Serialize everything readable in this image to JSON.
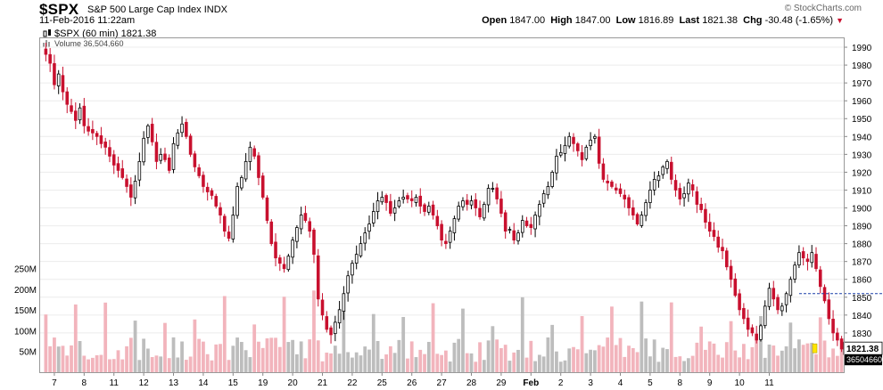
{
  "header": {
    "symbol": "$SPX",
    "name": "S&P 500 Large Cap Index",
    "exchange": "INDX",
    "datetime": "11-Feb-2016 11:22am",
    "copyright": "© StockCharts.com",
    "open_label": "Open",
    "open": "1847.00",
    "high_label": "High",
    "high": "1847.00",
    "low_label": "Low",
    "low": "1816.89",
    "last_label": "Last",
    "last": "1821.38",
    "chg_label": "Chg",
    "chg": "-30.48 (-1.65%)",
    "down_icon": "triangle-down-icon"
  },
  "legend": {
    "price_line": "$SPX (60 min) 1821.38",
    "volume_line": "Volume 36,504,660"
  },
  "markers": {
    "last_price": "1821.38",
    "last_volume": "36504660"
  },
  "colors": {
    "up": "#000000",
    "down": "#c8102e",
    "vol_down": "#f2b4bc",
    "vol_up": "#bdbdbd",
    "ref_line": "#1a3fa8",
    "last_marker": "#ffe600"
  },
  "chart_data": {
    "type": "candlestick",
    "title": "$SPX (60 min)",
    "x_tick_labels": [
      "7",
      "8",
      "11",
      "12",
      "13",
      "14",
      "15",
      "19",
      "20",
      "21",
      "22",
      "25",
      "26",
      "27",
      "28",
      "29",
      "Feb",
      "2",
      "3",
      "4",
      "5",
      "8",
      "9",
      "10",
      "11"
    ],
    "y_tick_labels": [
      "1990",
      "1980",
      "1970",
      "1960",
      "1950",
      "1940",
      "1930",
      "1920",
      "1910",
      "1900",
      "1890",
      "1880",
      "1870",
      "1860",
      "1850",
      "1840",
      "1830"
    ],
    "ylim": [
      1812,
      1995
    ],
    "reference_level": 1852,
    "volume_axis_labels": [
      "250M",
      "200M",
      "150M",
      "100M",
      "50M"
    ],
    "volume_ylim": [
      0,
      260
    ],
    "bars_per_day": 7,
    "closes": [
      1986,
      1981,
      1969,
      1975,
      1965,
      1958,
      1954,
      1949,
      1956,
      1946,
      1943,
      1942,
      1940,
      1936,
      1934,
      1929,
      1924,
      1921,
      1917,
      1912,
      1906,
      1915,
      1926,
      1939,
      1946,
      1937,
      1926,
      1930,
      1927,
      1921,
      1936,
      1942,
      1947,
      1940,
      1930,
      1923,
      1918,
      1912,
      1909,
      1907,
      1901,
      1896,
      1887,
      1883,
      1896,
      1912,
      1917,
      1926,
      1934,
      1929,
      1917,
      1906,
      1893,
      1880,
      1872,
      1869,
      1866,
      1873,
      1882,
      1889,
      1896,
      1893,
      1887,
      1874,
      1849,
      1840,
      1832,
      1829,
      1836,
      1843,
      1852,
      1862,
      1869,
      1874,
      1880,
      1886,
      1891,
      1898,
      1904,
      1906,
      1903,
      1897,
      1900,
      1904,
      1906,
      1905,
      1904,
      1906,
      1901,
      1898,
      1901,
      1896,
      1890,
      1882,
      1880,
      1887,
      1894,
      1901,
      1904,
      1902,
      1904,
      1900,
      1895,
      1902,
      1911,
      1911,
      1905,
      1897,
      1887,
      1888,
      1882,
      1886,
      1893,
      1890,
      1889,
      1896,
      1902,
      1908,
      1912,
      1920,
      1929,
      1931,
      1935,
      1940,
      1936,
      1932,
      1927,
      1934,
      1938,
      1940,
      1925,
      1916,
      1914,
      1912,
      1910,
      1908,
      1905,
      1900,
      1896,
      1891,
      1896,
      1903,
      1910,
      1916,
      1918,
      1923,
      1926,
      1916,
      1910,
      1905,
      1908,
      1914,
      1910,
      1902,
      1899,
      1892,
      1887,
      1884,
      1878,
      1876,
      1867,
      1860,
      1851,
      1843,
      1838,
      1832,
      1830,
      1826,
      1834,
      1845,
      1855,
      1849,
      1843,
      1845,
      1852,
      1860,
      1868,
      1875,
      1872,
      1870,
      1875,
      1866,
      1856,
      1848,
      1838,
      1830,
      1826,
      1821
    ]
  }
}
